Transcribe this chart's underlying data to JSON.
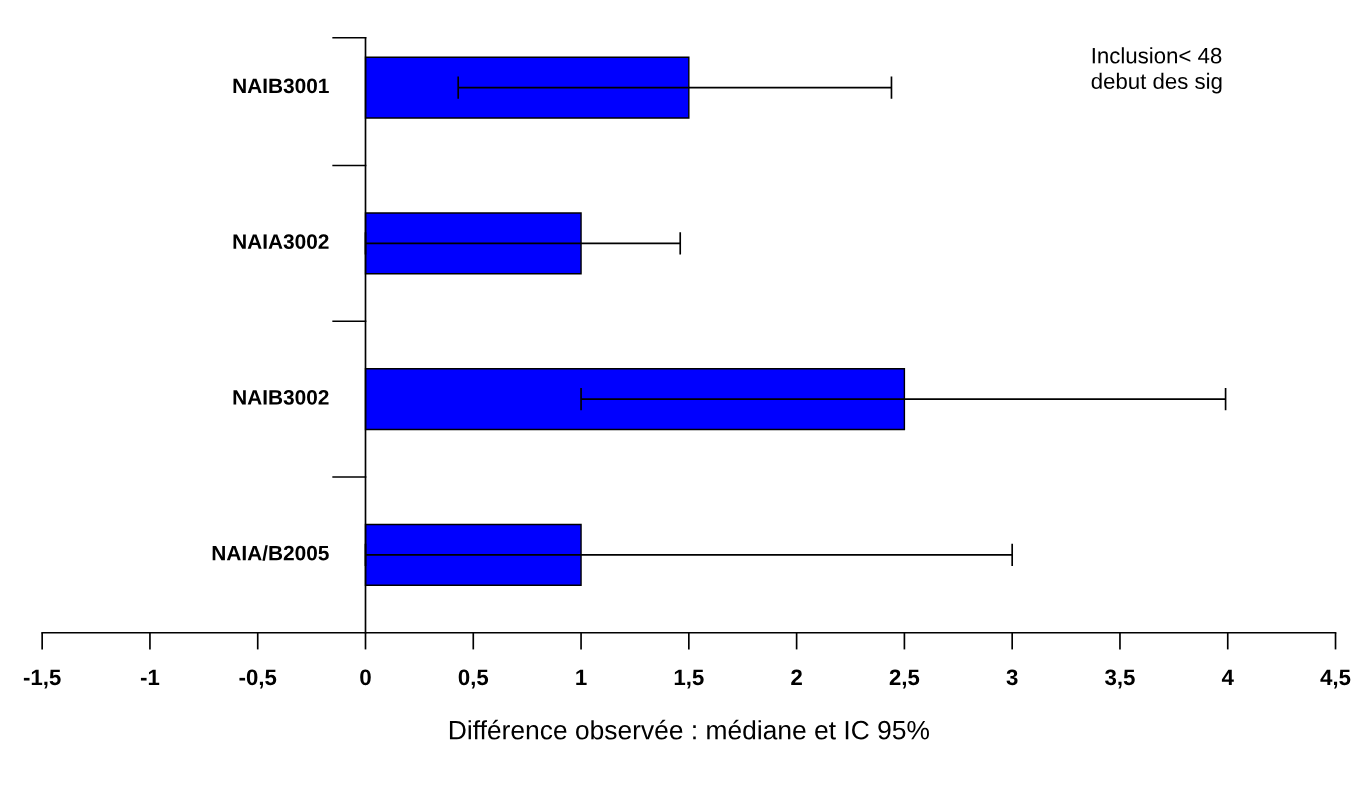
{
  "chart_data": {
    "type": "bar",
    "orientation": "horizontal",
    "categories": [
      "NAIB3001",
      "NAIA3002",
      "NAIB3002",
      "NAIA/B2005"
    ],
    "values": [
      1.5,
      1.0,
      2.5,
      1.0
    ],
    "color": "#0000ff",
    "errors": [
      [
        0.43,
        2.44
      ],
      [
        0,
        1.46
      ],
      [
        1.0,
        3.99
      ],
      [
        0,
        3.0
      ]
    ],
    "xlim": [
      -1.5,
      4.5
    ],
    "xticks": [
      {
        "value": -1.5,
        "label": "-1,5"
      },
      {
        "value": -1,
        "label": "-1"
      },
      {
        "value": -0.5,
        "label": "-0,5"
      },
      0,
      {
        "value": 0.5,
        "label": "0,5"
      },
      1,
      {
        "value": 1.5,
        "label": "1,5"
      },
      2,
      {
        "value": 2.5,
        "label": "2,5"
      },
      3,
      {
        "value": 3.5,
        "label": "3,5"
      },
      4,
      {
        "value": 4.5,
        "label": "4,5"
      }
    ],
    "xlabel": "Différence observée : médiane et IC 95%",
    "annotations": [
      "Inclusion< 48\ndebut des sig"
    ],
    "grid": false,
    "legend": false
  }
}
